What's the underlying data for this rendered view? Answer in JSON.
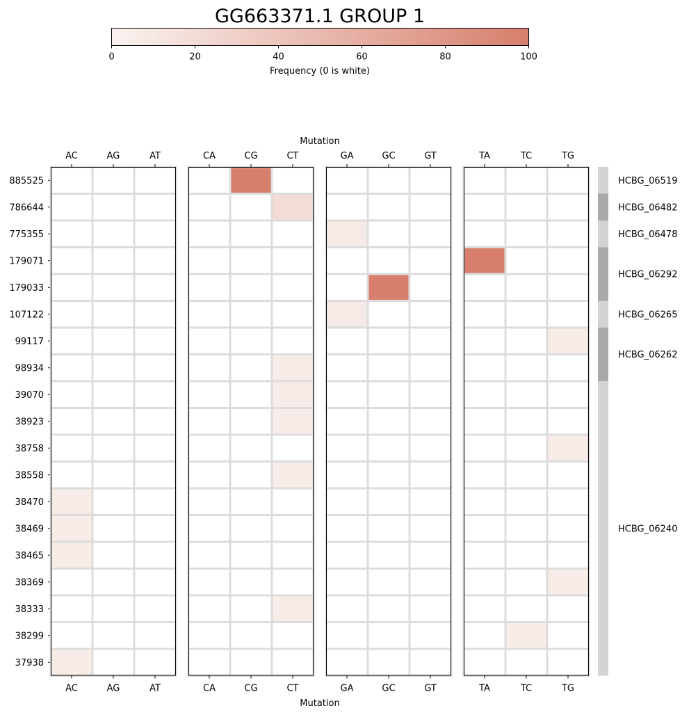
{
  "chart_data": {
    "type": "heatmap",
    "title": "GG663371.1 GROUP 1",
    "colorbar": {
      "label": "Frequency (0 is white)",
      "min": 0,
      "max": 100,
      "ticks": [
        "0",
        "20",
        "40",
        "60",
        "80",
        "100"
      ],
      "color_low": "#faf3f1",
      "color_high": "#d77f6c"
    },
    "xlabel": "Mutation",
    "panels": [
      [
        "AC",
        "AG",
        "AT"
      ],
      [
        "CA",
        "CG",
        "CT"
      ],
      [
        "GA",
        "GC",
        "GT"
      ],
      [
        "TA",
        "TC",
        "TG"
      ]
    ],
    "rows": [
      "885525",
      "786644",
      "775355",
      "179071",
      "179033",
      "107122",
      "99117",
      "98934",
      "39070",
      "38923",
      "38758",
      "38558",
      "38470",
      "38469",
      "38465",
      "38369",
      "38333",
      "38299",
      "37938"
    ],
    "values": [
      {
        "row": "885525",
        "col": "CG",
        "value": 100
      },
      {
        "row": "786644",
        "col": "CT",
        "value": 20
      },
      {
        "row": "775355",
        "col": "GA",
        "value": 8
      },
      {
        "row": "179071",
        "col": "TA",
        "value": 100
      },
      {
        "row": "179033",
        "col": "GC",
        "value": 100
      },
      {
        "row": "107122",
        "col": "GA",
        "value": 8
      },
      {
        "row": "99117",
        "col": "TG",
        "value": 6
      },
      {
        "row": "98934",
        "col": "CT",
        "value": 6
      },
      {
        "row": "39070",
        "col": "CT",
        "value": 6
      },
      {
        "row": "38923",
        "col": "CT",
        "value": 6
      },
      {
        "row": "38758",
        "col": "TG",
        "value": 6
      },
      {
        "row": "38558",
        "col": "CT",
        "value": 6
      },
      {
        "row": "38470",
        "col": "AC",
        "value": 6
      },
      {
        "row": "38469",
        "col": "AC",
        "value": 6
      },
      {
        "row": "38465",
        "col": "AC",
        "value": 6
      },
      {
        "row": "38369",
        "col": "TG",
        "value": 6
      },
      {
        "row": "38333",
        "col": "CT",
        "value": 6
      },
      {
        "row": "38299",
        "col": "TC",
        "value": 6
      },
      {
        "row": "37938",
        "col": "AC",
        "value": 6
      }
    ],
    "groups": [
      {
        "label": "HCBG_06519",
        "rows": 1,
        "color": "#d3d3d3"
      },
      {
        "label": "HCBG_06482",
        "rows": 1,
        "color": "#a9a9a9"
      },
      {
        "label": "HCBG_06478",
        "rows": 1,
        "color": "#d3d3d3"
      },
      {
        "label": "HCBG_06292",
        "rows": 2,
        "color": "#a9a9a9"
      },
      {
        "label": "HCBG_06265",
        "rows": 1,
        "color": "#d3d3d3"
      },
      {
        "label": "HCBG_06262",
        "rows": 2,
        "color": "#a9a9a9"
      },
      {
        "label": "HCBG_06240",
        "rows": 11,
        "color": "#d3d3d3"
      }
    ],
    "grid_color": "#dcdcdc"
  }
}
